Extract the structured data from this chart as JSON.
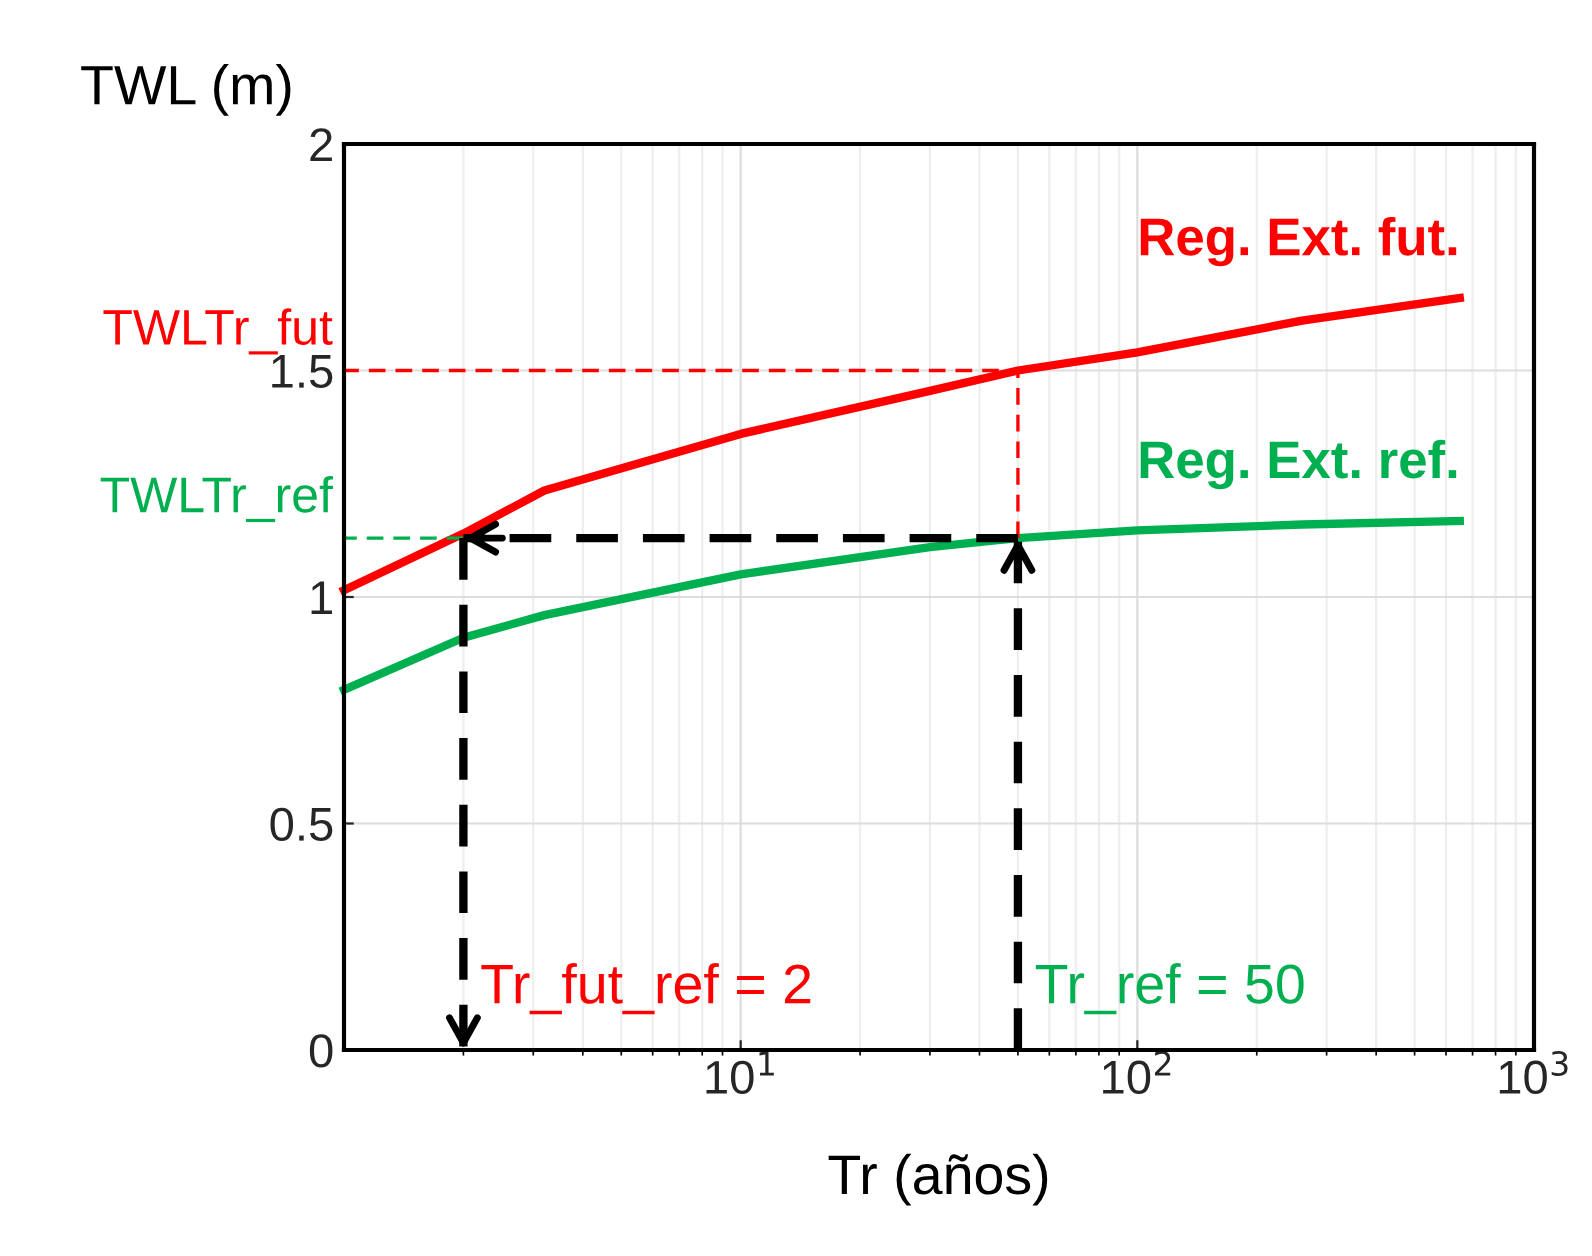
{
  "chart_data": {
    "type": "line",
    "xlabel": "Tr (años)",
    "ylabel": "TWL (m)",
    "log": "x",
    "xlim": [
      1,
      1000
    ],
    "xticks": [
      {
        "value": 10,
        "label": "10$^{1}$"
      },
      {
        "value": 100,
        "label": "10$^{2}$"
      },
      {
        "value": 1000,
        "label": "10$^{3}$"
      }
    ],
    "ylim": [
      0,
      2
    ],
    "yticks": [
      0,
      0.5,
      1,
      1.5,
      2
    ],
    "grid": true,
    "series": [
      {
        "name": "Reg. Ext. fut.",
        "color": "#ff0000",
        "x": [
          1,
          2,
          3.2,
          10,
          30,
          50,
          100,
          260,
          650
        ],
        "values": [
          1.015,
          1.14,
          1.235,
          1.36,
          1.455,
          1.5,
          1.54,
          1.61,
          1.66
        ]
      },
      {
        "name": "Reg. Ext. ref.",
        "color": "#00b050",
        "x": [
          1,
          2,
          3.2,
          10,
          30,
          50,
          100,
          260,
          650
        ],
        "values": [
          0.795,
          0.91,
          0.96,
          1.05,
          1.11,
          1.13,
          1.147,
          1.16,
          1.168
        ]
      },
      {
        "name": "TWLTr_fut",
        "color": "#ff0000",
        "line_style": "dashed",
        "x": [
          50,
          50,
          1
        ],
        "values": [
          1.13,
          1.5,
          1.5
        ]
      },
      {
        "name": "TWLTr_ref",
        "color": "#00b050",
        "line_style": "dashed",
        "x": [
          2,
          1
        ],
        "values": [
          1.13,
          1.13
        ]
      },
      {
        "color": "#000000",
        "line_style": "dashed",
        "x": [
          50,
          50
        ],
        "values": [
          0,
          1.13
        ]
      },
      {
        "color": "#000000",
        "line_style": "dashed",
        "x": [
          50,
          2
        ],
        "values": [
          1.13,
          1.13
        ]
      },
      {
        "color": "#000000",
        "line_style": "dashed",
        "x": [
          2,
          2
        ],
        "values": [
          1.13,
          0
        ]
      }
    ],
    "annotations": [
      {
        "text": "Tr_fut_ref = 2",
        "x": 2,
        "y": 0
      },
      {
        "text": "Tr_ref = 50",
        "x": 50,
        "y": 0
      }
    ]
  }
}
